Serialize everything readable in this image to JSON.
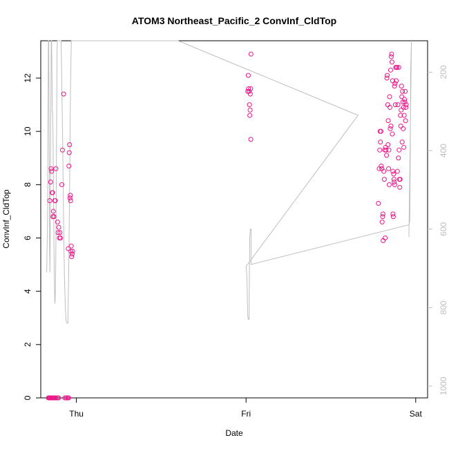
{
  "colors": {
    "points": "#ee1289",
    "pressure_line": "#bebebe",
    "right_axis": "#bebebe",
    "axis": "#000000"
  },
  "chart_data": {
    "type": "scatter",
    "title": "ATOM3 Northeast_Pacific_2 ConvInf_CldTop",
    "xlabel": "Date",
    "ylabel": "ConvInf_CldTop",
    "ylim": [
      0,
      13.4
    ],
    "y_ticks": [
      0,
      2,
      4,
      6,
      8,
      10,
      12
    ],
    "xlim_days": [
      -0.21,
      2.07
    ],
    "x_ticks": [
      {
        "label": "Thu",
        "day": 0
      },
      {
        "label": "Fri",
        "day": 1
      },
      {
        "label": "Sat",
        "day": 2
      }
    ],
    "right_axis": {
      "ylim": [
        1030,
        120
      ],
      "ticks": [
        200,
        400,
        600,
        800,
        1000
      ],
      "color": "#bebebe"
    },
    "series": [
      {
        "type": "scatter",
        "color": "#ee1289",
        "points": [
          [
            -0.165,
            0
          ],
          [
            -0.16,
            0
          ],
          [
            -0.155,
            0
          ],
          [
            -0.15,
            0
          ],
          [
            -0.145,
            0
          ],
          [
            -0.138,
            0
          ],
          [
            -0.132,
            0
          ],
          [
            -0.128,
            0
          ],
          [
            -0.12,
            0
          ],
          [
            -0.112,
            0
          ],
          [
            -0.105,
            0
          ],
          [
            -0.068,
            0
          ],
          [
            -0.06,
            0
          ],
          [
            -0.052,
            0
          ],
          [
            -0.045,
            0
          ],
          [
            -0.157,
            7.4
          ],
          [
            -0.152,
            8.1
          ],
          [
            -0.149,
            8.6
          ],
          [
            -0.146,
            8.5
          ],
          [
            -0.143,
            7.7
          ],
          [
            -0.14,
            7.7
          ],
          [
            -0.138,
            6.8
          ],
          [
            -0.136,
            7.0
          ],
          [
            -0.132,
            6.8
          ],
          [
            -0.127,
            7.4
          ],
          [
            -0.125,
            7.4
          ],
          [
            -0.121,
            8.6
          ],
          [
            -0.111,
            6.6
          ],
          [
            -0.108,
            6.2
          ],
          [
            -0.104,
            6.4
          ],
          [
            -0.1,
            6.0
          ],
          [
            -0.097,
            6.2
          ],
          [
            -0.094,
            6.0
          ],
          [
            -0.086,
            8.0
          ],
          [
            -0.082,
            9.3
          ],
          [
            -0.075,
            11.4
          ],
          [
            -0.048,
            5.6
          ],
          [
            -0.044,
            8.7
          ],
          [
            -0.042,
            9.2
          ],
          [
            -0.04,
            9.5
          ],
          [
            -0.038,
            7.5
          ],
          [
            -0.036,
            7.6
          ],
          [
            -0.034,
            7.4
          ],
          [
            -0.032,
            5.5
          ],
          [
            -0.03,
            5.7
          ],
          [
            -0.028,
            5.3
          ],
          [
            -0.025,
            5.4
          ],
          [
            -0.022,
            5.5
          ],
          [
            1.01,
            11.5
          ],
          [
            1.013,
            12.1
          ],
          [
            1.014,
            11.6
          ],
          [
            1.018,
            11.5
          ],
          [
            1.02,
            11.0
          ],
          [
            1.022,
            10.6
          ],
          [
            1.024,
            10.8
          ],
          [
            1.025,
            11.4
          ],
          [
            1.027,
            11.6
          ],
          [
            1.028,
            9.7
          ],
          [
            1.029,
            12.9
          ],
          [
            1.78,
            7.3
          ],
          [
            1.785,
            8.6
          ],
          [
            1.788,
            9.3
          ],
          [
            1.79,
            10.0
          ],
          [
            1.792,
            9.6
          ],
          [
            1.795,
            10.0
          ],
          [
            1.797,
            8.7
          ],
          [
            1.8,
            8.6
          ],
          [
            1.802,
            6.6
          ],
          [
            1.805,
            6.8
          ],
          [
            1.807,
            6.9
          ],
          [
            1.808,
            5.9
          ],
          [
            1.812,
            8.5
          ],
          [
            1.815,
            8.2
          ],
          [
            1.818,
            9.3
          ],
          [
            1.82,
            6.0
          ],
          [
            1.822,
            9.4
          ],
          [
            1.825,
            9.3
          ],
          [
            1.828,
            9.1
          ],
          [
            1.83,
            12.0
          ],
          [
            1.832,
            12.1
          ],
          [
            1.835,
            11.0
          ],
          [
            1.837,
            9.5
          ],
          [
            1.838,
            10.4
          ],
          [
            1.84,
            8.6
          ],
          [
            1.842,
            9.3
          ],
          [
            1.844,
            8.0
          ],
          [
            1.846,
            11.3
          ],
          [
            1.848,
            10.9
          ],
          [
            1.85,
            10.1
          ],
          [
            1.852,
            12.3
          ],
          [
            1.854,
            10.2
          ],
          [
            1.856,
            12.8
          ],
          [
            1.858,
            12.9
          ],
          [
            1.86,
            12.6
          ],
          [
            1.862,
            9.9
          ],
          [
            1.864,
            11.9
          ],
          [
            1.865,
            8.5
          ],
          [
            1.866,
            6.9
          ],
          [
            1.868,
            6.8
          ],
          [
            1.87,
            8.4
          ],
          [
            1.872,
            8.2
          ],
          [
            1.873,
            8.1
          ],
          [
            1.875,
            11.7
          ],
          [
            1.876,
            8.0
          ],
          [
            1.878,
            11.8
          ],
          [
            1.88,
            11.0
          ],
          [
            1.882,
            12.4
          ],
          [
            1.885,
            11.9
          ],
          [
            1.888,
            12.4
          ],
          [
            1.89,
            12.4
          ],
          [
            1.892,
            8.5
          ],
          [
            1.895,
            11.0
          ],
          [
            1.898,
            9.0
          ],
          [
            1.9,
            12.4
          ],
          [
            1.902,
            9.3
          ],
          [
            1.904,
            8.2
          ],
          [
            1.906,
            7.9
          ],
          [
            1.908,
            8.2
          ],
          [
            1.91,
            10.6
          ],
          [
            1.912,
            10.2
          ],
          [
            1.914,
            10.8
          ],
          [
            1.916,
            11.7
          ],
          [
            1.918,
            11.3
          ],
          [
            1.92,
            9.6
          ],
          [
            1.922,
            11.5
          ],
          [
            1.924,
            11.1
          ],
          [
            1.926,
            10.1
          ],
          [
            1.928,
            10.9
          ],
          [
            1.93,
            9.4
          ],
          [
            1.932,
            10.6
          ],
          [
            1.934,
            11.2
          ],
          [
            1.936,
            11.1
          ],
          [
            1.938,
            11.5
          ],
          [
            1.94,
            10.4
          ],
          [
            1.942,
            10.9
          ],
          [
            1.944,
            11.0
          ]
        ]
      },
      {
        "type": "line",
        "axis": "right",
        "color": "#bebebe",
        "points": [
          [
            -0.175,
            710
          ],
          [
            -0.17,
            580
          ],
          [
            -0.167,
            300
          ],
          [
            -0.165,
            120
          ],
          [
            -0.163,
            120
          ],
          [
            -0.16,
            400
          ],
          [
            -0.158,
            640
          ],
          [
            -0.156,
            710
          ],
          [
            -0.154,
            600
          ],
          [
            -0.152,
            400
          ],
          [
            -0.15,
            250
          ],
          [
            -0.148,
            120
          ],
          [
            -0.146,
            120
          ],
          [
            -0.144,
            200
          ],
          [
            -0.142,
            300
          ],
          [
            -0.14,
            300
          ],
          [
            -0.138,
            350
          ],
          [
            -0.136,
            450
          ],
          [
            -0.134,
            550
          ],
          [
            -0.132,
            650
          ],
          [
            -0.13,
            720
          ],
          [
            -0.128,
            775
          ],
          [
            -0.126,
            790
          ],
          [
            -0.124,
            760
          ],
          [
            -0.122,
            700
          ],
          [
            -0.12,
            600
          ],
          [
            -0.118,
            450
          ],
          [
            -0.116,
            300
          ],
          [
            -0.114,
            150
          ],
          [
            -0.112,
            120
          ],
          [
            -0.11,
            120
          ],
          [
            -0.1,
            120
          ],
          [
            -0.09,
            120
          ],
          [
            -0.08,
            400
          ],
          [
            -0.075,
            600
          ],
          [
            -0.07,
            730
          ],
          [
            -0.065,
            800
          ],
          [
            -0.06,
            835
          ],
          [
            -0.055,
            840
          ],
          [
            -0.05,
            840
          ],
          [
            -0.045,
            700
          ],
          [
            -0.04,
            500
          ],
          [
            -0.035,
            250
          ],
          [
            -0.03,
            120
          ],
          [
            -0.02,
            120
          ],
          [
            -0.01,
            120
          ],
          [
            0.6,
            120
          ],
          [
            1.66,
            310
          ],
          [
            1.0,
            695
          ],
          [
            1.005,
            720
          ],
          [
            1.01,
            820
          ],
          [
            1.013,
            830
          ],
          [
            1.018,
            830
          ],
          [
            1.02,
            700
          ],
          [
            1.022,
            620
          ],
          [
            1.025,
            600
          ],
          [
            1.03,
            600
          ],
          [
            1.029,
            690
          ],
          [
            1.95,
            590
          ],
          [
            1.96,
            590
          ],
          [
            1.965,
            580
          ],
          [
            1.968,
            400
          ],
          [
            1.97,
            200
          ],
          [
            1.973,
            150
          ],
          [
            1.975,
            120
          ],
          [
            1.96,
            620
          ]
        ]
      }
    ]
  }
}
